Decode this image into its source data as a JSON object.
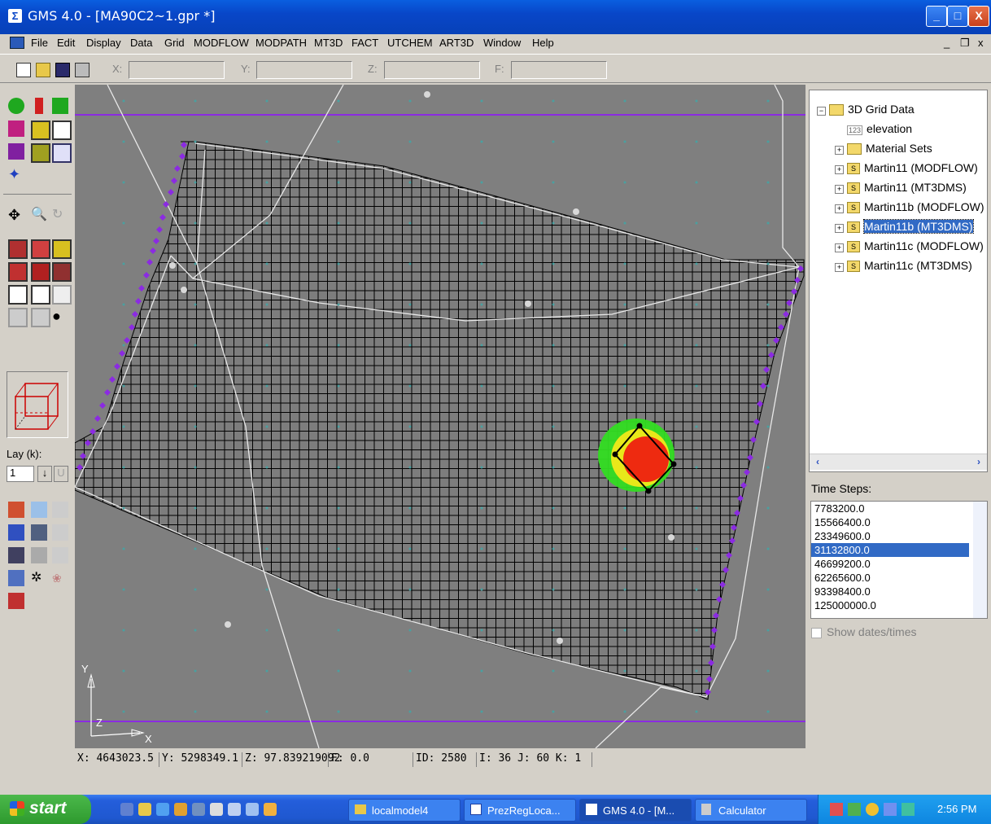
{
  "window": {
    "title": "GMS 4.0 - [MA90C2~1.gpr *]",
    "min_label": "_",
    "max_label": "□",
    "close_label": "X",
    "doc_min": "_",
    "doc_restore": "❐",
    "doc_close": "x"
  },
  "menu": [
    "File",
    "Edit",
    "Display",
    "Data",
    "Grid",
    "MODFLOW",
    "MODPATH",
    "MT3D",
    "FACT",
    "UTCHEM",
    "ART3D",
    "Window",
    "Help"
  ],
  "toolbar": {
    "x_label": "X:",
    "y_label": "Y:",
    "z_label": "Z:",
    "f_label": "F:"
  },
  "palette": {
    "lay_label": "Lay (k):",
    "lay_value": "1",
    "lay_up": "↓",
    "lay_u": "U"
  },
  "axes": {
    "y": "Y",
    "x": "X",
    "z": "Z"
  },
  "tree": {
    "root": "3D Grid Data",
    "items": [
      "elevation",
      "Material Sets",
      "Martin11 (MODFLOW)",
      "Martin11 (MT3DMS)",
      "Martin11b (MODFLOW)",
      "Martin11b (MT3DMS)",
      "Martin11c (MODFLOW)",
      "Martin11c (MT3DMS)"
    ],
    "selected_index": 5,
    "elevation_badge": "123",
    "solution_badge": "S"
  },
  "timesteps": {
    "label": "Time Steps:",
    "values": [
      "7783200.0",
      "15566400.0",
      "23349600.0",
      "31132800.0",
      "46699200.0",
      "62265600.0",
      "93398400.0",
      "125000000.0"
    ],
    "selected_index": 3,
    "show_dates": "Show dates/times"
  },
  "status": {
    "x": "X: 4643023.5",
    "y": "Y: 5298349.1",
    "z": "Z: 97.839219092",
    "f": "F: 0.0",
    "id": "ID: 2580",
    "ijk": "I: 36  J: 60  K: 1"
  },
  "taskbar": {
    "start": "start",
    "tasks": [
      "localmodel4",
      "PrezRegLoca...",
      "GMS 4.0 - [M...",
      "Calculator"
    ],
    "active_index": 2,
    "clock": "2:56 PM"
  },
  "colors": {
    "boundary": "#8b2be2",
    "grid_line": "#000000",
    "viewport": "#7f7f7f",
    "plume_low": "#33dd22",
    "plume_mid": "#e8e81a",
    "plume_high": "#ee2a10",
    "selection": "#316ac5"
  }
}
